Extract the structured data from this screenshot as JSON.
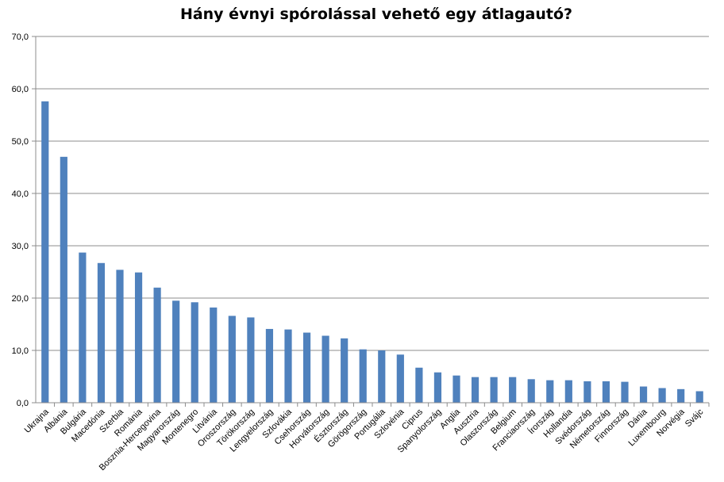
{
  "chart_data": {
    "type": "bar",
    "title": "Hány évnyi spórolással vehető egy átlagautó?",
    "xlabel": "",
    "ylabel": "",
    "ylim": [
      0,
      70
    ],
    "yticks": [
      "0,0",
      "10,0",
      "20,0",
      "30,0",
      "40,0",
      "50,0",
      "60,0",
      "70,0"
    ],
    "grid": true,
    "bar_color": "#4f81bd",
    "categories": [
      "Ukrajna",
      "Albánia",
      "Bulgária",
      "Macedónia",
      "Szerbia",
      "Románia",
      "Bosznia-Hercegovina",
      "Magyarország",
      "Montenegro",
      "Litvánia",
      "Oroszország",
      "Törökország",
      "Lengyelország",
      "Szlovákia",
      "Csehország",
      "Horvátország",
      "Észtország",
      "Görögország",
      "Portugália",
      "Szlovénia",
      "Ciprus",
      "Spanyolország",
      "Anglia",
      "Ausztria",
      "Olaszország",
      "Belgium",
      "Franciaország",
      "Írország",
      "Hollandia",
      "Svédország",
      "Németország",
      "Finnország",
      "Dánia",
      "Luxembourg",
      "Norvégia",
      "Svájc"
    ],
    "values": [
      57.6,
      47.0,
      28.7,
      26.7,
      25.4,
      24.9,
      22.0,
      19.5,
      19.2,
      18.2,
      16.6,
      16.3,
      14.1,
      14.0,
      13.4,
      12.8,
      12.3,
      10.2,
      10.0,
      9.2,
      6.7,
      5.8,
      5.2,
      4.9,
      4.9,
      4.9,
      4.5,
      4.3,
      4.3,
      4.1,
      4.1,
      4.0,
      3.1,
      2.8,
      2.6,
      2.2
    ]
  }
}
